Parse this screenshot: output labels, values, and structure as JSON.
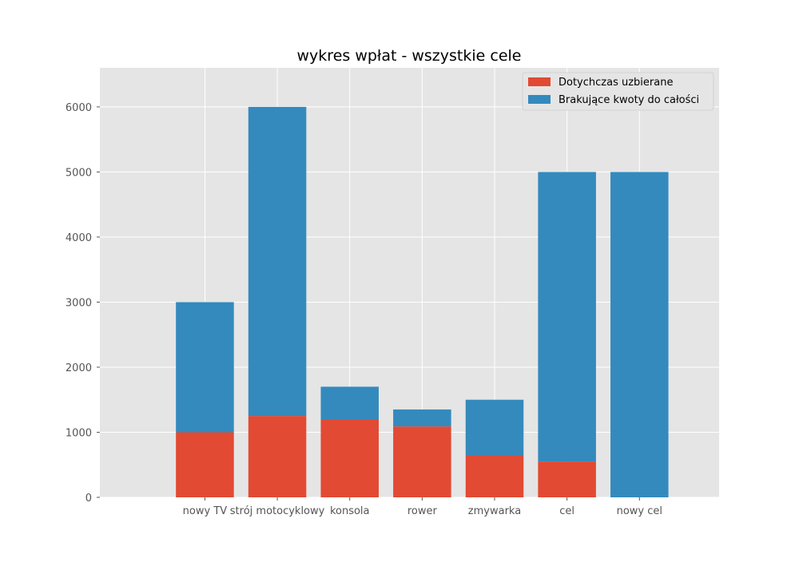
{
  "chart_data": {
    "type": "bar",
    "stacked": true,
    "title": "wykres wpłat - wszystkie cele",
    "xlabel": "",
    "ylabel": "",
    "categories": [
      "nowy TV",
      "strój motocyklowy",
      "konsola",
      "rower",
      "zmywarka",
      "cel",
      "nowy cel"
    ],
    "series": [
      {
        "name": "Dotychczas uzbierane",
        "color": "#E24A33",
        "values": [
          1000,
          1250,
          1190,
          1090,
          650,
          550,
          0
        ]
      },
      {
        "name": "Brakujące kwoty do całości",
        "color": "#348ABD",
        "values": [
          2000,
          4750,
          510,
          260,
          850,
          4450,
          5000
        ]
      }
    ],
    "ylim": [
      0,
      6600
    ],
    "yticks": [
      0,
      1000,
      2000,
      3000,
      4000,
      5000,
      6000
    ],
    "grid": true,
    "legend_position": "top-right",
    "background_color": "#E5E5E5",
    "grid_color": "#FFFFFF"
  }
}
